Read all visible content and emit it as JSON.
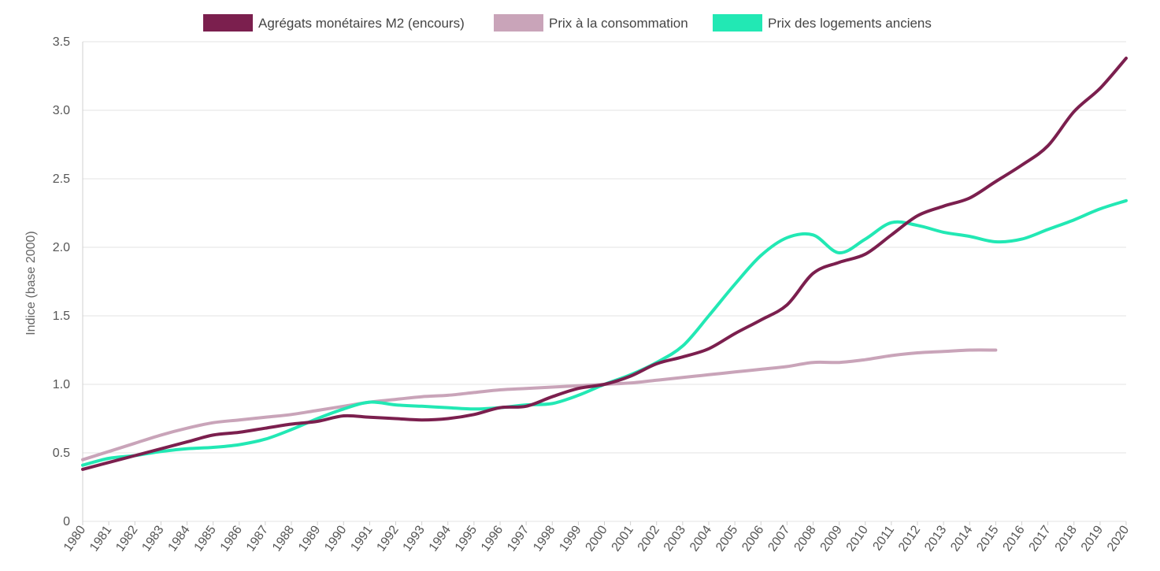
{
  "chart_data": {
    "type": "line",
    "title": "",
    "xlabel": "",
    "ylabel": "Indice (base 2000)",
    "x": [
      "1980",
      "1981",
      "1982",
      "1983",
      "1984",
      "1985",
      "1986",
      "1987",
      "1988",
      "1989",
      "1990",
      "1991",
      "1992",
      "1993",
      "1994",
      "1995",
      "1996",
      "1997",
      "1998",
      "1999",
      "2000",
      "2001",
      "2002",
      "2003",
      "2004",
      "2005",
      "2006",
      "2007",
      "2008",
      "2009",
      "2010",
      "2011",
      "2012",
      "2013",
      "2014",
      "2015",
      "2016",
      "2017",
      "2018",
      "2019",
      "2020"
    ],
    "ylim": [
      0,
      3.5
    ],
    "yticks": [
      0,
      0.5,
      1.0,
      1.5,
      2.0,
      2.5,
      3.0,
      3.5
    ],
    "ytick_labels": [
      "0",
      "0.5",
      "1.0",
      "1.5",
      "2.0",
      "2.5",
      "3.0",
      "3.5"
    ],
    "grid": true,
    "legend_position": "top-center",
    "series": [
      {
        "name": "Agrégats monétaires M2 (encours)",
        "color": "#7b1f4e",
        "values": [
          0.38,
          0.43,
          0.48,
          0.53,
          0.58,
          0.63,
          0.65,
          0.68,
          0.71,
          0.73,
          0.77,
          0.76,
          0.75,
          0.74,
          0.75,
          0.78,
          0.83,
          0.84,
          0.91,
          0.97,
          1.0,
          1.06,
          1.15,
          1.2,
          1.26,
          1.37,
          1.47,
          1.58,
          1.81,
          1.89,
          1.95,
          2.09,
          2.23,
          2.3,
          2.36,
          2.48,
          2.6,
          2.74,
          2.99,
          3.16,
          3.38
        ]
      },
      {
        "name": "Prix à la consommation",
        "color": "#c9a4b9",
        "values": [
          0.45,
          0.51,
          0.57,
          0.63,
          0.68,
          0.72,
          0.74,
          0.76,
          0.78,
          0.81,
          0.84,
          0.87,
          0.89,
          0.91,
          0.92,
          0.94,
          0.96,
          0.97,
          0.98,
          0.99,
          1.0,
          1.01,
          1.03,
          1.05,
          1.07,
          1.09,
          1.11,
          1.13,
          1.16,
          1.16,
          1.18,
          1.21,
          1.23,
          1.24,
          1.25,
          1.25,
          null,
          null,
          null,
          null,
          null
        ]
      },
      {
        "name": "Prix des logements anciens",
        "color": "#22e8b4",
        "values": [
          0.41,
          0.46,
          0.48,
          0.51,
          0.53,
          0.54,
          0.56,
          0.6,
          0.67,
          0.75,
          0.82,
          0.87,
          0.85,
          0.84,
          0.83,
          0.82,
          0.83,
          0.85,
          0.86,
          0.92,
          1.0,
          1.07,
          1.16,
          1.28,
          1.5,
          1.73,
          1.94,
          2.07,
          2.09,
          1.96,
          2.06,
          2.18,
          2.16,
          2.11,
          2.08,
          2.04,
          2.06,
          2.13,
          2.2,
          2.28,
          2.34
        ]
      }
    ]
  }
}
